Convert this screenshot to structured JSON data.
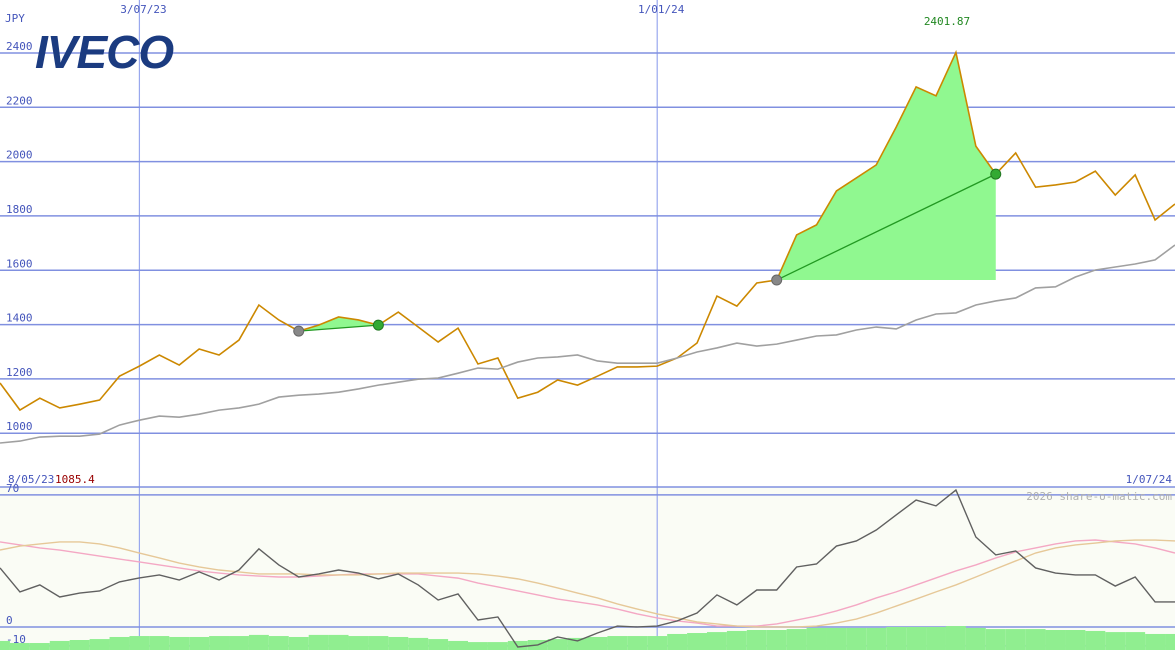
{
  "logo": "IVECO",
  "chart_data": [
    {
      "type": "line",
      "y_unit": "JPY",
      "x": [
        0,
        1,
        2,
        3,
        4,
        5,
        6,
        7,
        8,
        9,
        10,
        11,
        12,
        13,
        14,
        15,
        16,
        17,
        18,
        19,
        20,
        21,
        22,
        23,
        24,
        25,
        26,
        27,
        28,
        29,
        30,
        31,
        32,
        33,
        34,
        35,
        36,
        37,
        38,
        39,
        40,
        41,
        42,
        43,
        44,
        45,
        46,
        47,
        48,
        49,
        50,
        51,
        52,
        53,
        54,
        55,
        56,
        57,
        58,
        59
      ],
      "xlim": [
        0,
        59
      ],
      "xticks": [
        {
          "value": 7,
          "label": "3/07/23"
        },
        {
          "value": 33,
          "label": "1/01/24"
        }
      ],
      "ylim": [
        802,
        2595
      ],
      "yticks": [
        1000,
        1200,
        1400,
        1600,
        1800,
        2000,
        2200,
        2400
      ],
      "grid": true,
      "start_date": "8/05/23",
      "end_date": "1/07/24",
      "series": [
        {
          "type": "line",
          "color": "#cc8800",
          "values": [
            1185,
            1085.4,
            1129,
            1093,
            1107,
            1122,
            1210,
            1247,
            1288,
            1251,
            1310,
            1288,
            1343,
            1472,
            1417,
            1376,
            1398,
            1428,
            1417,
            1398,
            1446,
            1391,
            1336,
            1387,
            1255,
            1277,
            1129,
            1151,
            1196,
            1177,
            1210,
            1244,
            1244,
            1247,
            1277,
            1332,
            1505,
            1468,
            1553,
            1564,
            1730,
            1767,
            1892,
            1940,
            1988,
            2127,
            2275,
            2242,
            2401.87,
            2057,
            1954,
            2032,
            1906,
            1914,
            1925,
            1965,
            1877,
            1951,
            1785,
            1844
          ]
        },
        {
          "type": "line",
          "color": "#a0a0a0",
          "values": [
            964,
            971,
            986,
            989,
            989,
            997,
            1030,
            1048,
            1063,
            1059,
            1070,
            1085,
            1093,
            1107,
            1133,
            1140,
            1144,
            1151,
            1163,
            1177,
            1188,
            1199,
            1203,
            1221,
            1240,
            1236,
            1262,
            1277,
            1281,
            1288,
            1266,
            1258,
            1258,
            1258,
            1277,
            1299,
            1314,
            1332,
            1321,
            1328,
            1343,
            1358,
            1362,
            1380,
            1391,
            1384,
            1417,
            1439,
            1443,
            1472,
            1487,
            1498,
            1535,
            1539,
            1575,
            1601,
            1612,
            1623,
            1638,
            1693
          ]
        }
      ],
      "trades": [
        {
          "entry": 15,
          "exit": 19
        },
        {
          "entry": 39,
          "exit": 50
        }
      ],
      "trade_color": "#90f890"
    },
    {
      "type": "line",
      "watermark": "2026 share-o-matic.com",
      "ylim": [
        -12.2,
        74.2
      ],
      "yticks": [
        70,
        0,
        -10
      ],
      "series": [
        {
          "type": "bar",
          "color": "#90ee90",
          "values": [
            -7.4,
            -8.5,
            -8.5,
            -7.4,
            -6.9,
            -6.4,
            -5.3,
            -4.8,
            -4.8,
            -5.3,
            -5.3,
            -4.8,
            -4.8,
            -4.2,
            -4.8,
            -5.3,
            -4.2,
            -4.2,
            -4.8,
            -4.8,
            -5.3,
            -5.8,
            -6.4,
            -7.4,
            -8.0,
            -8.0,
            -7.4,
            -6.9,
            -6.4,
            -5.8,
            -5.3,
            -4.8,
            -4.8,
            -4.8,
            -3.7,
            -3.2,
            -2.7,
            -2.1,
            -1.6,
            -1.6,
            -1.1,
            -0.5,
            -0.5,
            -0.5,
            -0.5,
            0,
            0,
            0,
            0.5,
            -0.5,
            -1.1,
            -1.1,
            -1.1,
            -1.6,
            -1.6,
            -2.1,
            -2.7,
            -2.7,
            -3.7,
            -3.7
          ]
        },
        {
          "type": "line",
          "color": "#f4a8c4",
          "values": [
            45.1,
            43.5,
            41.9,
            40.8,
            39.2,
            37.6,
            36.0,
            34.5,
            32.9,
            31.3,
            29.7,
            28.6,
            27.6,
            27.0,
            26.5,
            26.5,
            27.0,
            27.6,
            28.1,
            28.1,
            28.1,
            28.1,
            27.0,
            25.9,
            23.3,
            21.2,
            19.1,
            17.0,
            14.8,
            13.3,
            11.7,
            9.5,
            6.9,
            4.8,
            3.2,
            2.1,
            0.5,
            0.5,
            0.5,
            1.6,
            3.7,
            5.8,
            8.5,
            11.7,
            15.4,
            18.6,
            22.3,
            26.0,
            29.7,
            32.9,
            36.6,
            39.8,
            41.9,
            44.0,
            45.6,
            46.1,
            45.1,
            44.0,
            41.9,
            39.2
          ]
        },
        {
          "type": "line",
          "color": "#e6c898",
          "values": [
            40.8,
            42.9,
            44.0,
            45.1,
            45.1,
            44.0,
            41.9,
            39.2,
            36.6,
            33.9,
            31.8,
            30.2,
            29.2,
            28.1,
            28.1,
            28.1,
            27.6,
            27.6,
            27.6,
            28.1,
            28.6,
            28.6,
            28.6,
            28.6,
            28.1,
            27.0,
            25.5,
            23.3,
            20.7,
            18.0,
            15.4,
            12.2,
            9.5,
            6.9,
            4.8,
            2.7,
            1.6,
            0.5,
            0,
            0,
            0,
            0.5,
            2.1,
            4.2,
            7.4,
            11.1,
            14.8,
            18.6,
            22.3,
            26.5,
            30.8,
            35.0,
            39.2,
            41.9,
            43.5,
            44.5,
            45.6,
            46.1,
            46.1,
            45.6
          ]
        },
        {
          "type": "line",
          "color": "#606060",
          "values": [
            31.3,
            18.6,
            22.3,
            15.9,
            18.0,
            19.1,
            23.9,
            26.0,
            27.6,
            24.9,
            29.2,
            24.9,
            30.2,
            41.4,
            32.9,
            26.5,
            28.1,
            30.2,
            28.6,
            25.5,
            28.1,
            22.3,
            14.3,
            17.5,
            3.7,
            5.3,
            -10.6,
            -9.5,
            -5.3,
            -7.4,
            -3.2,
            0.5,
            0,
            0.5,
            3.2,
            7.4,
            17.0,
            11.7,
            19.6,
            19.6,
            31.8,
            33.4,
            42.9,
            45.6,
            51.4,
            59.4,
            67.3,
            64.2,
            72.6,
            47.7,
            38.2,
            40.3,
            31.3,
            28.6,
            27.6,
            27.6,
            21.7,
            26.5,
            13.3,
            13.3
          ]
        }
      ]
    }
  ]
}
